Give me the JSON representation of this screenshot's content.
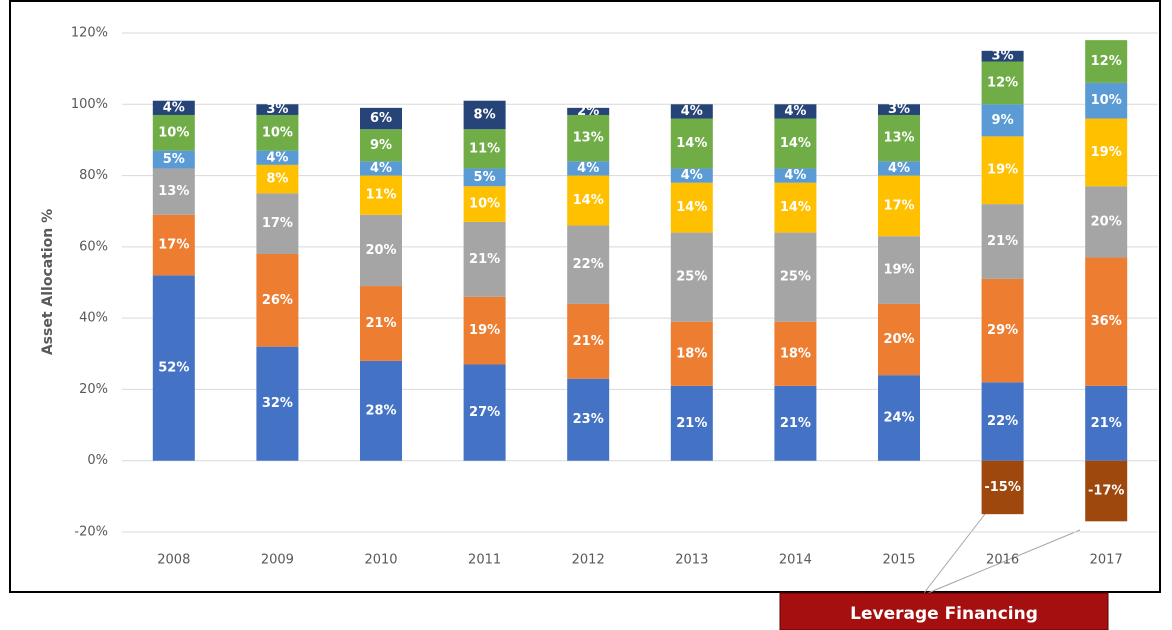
{
  "chart_data": {
    "type": "stacked_bar",
    "y_label": "Asset Allocation %",
    "annotation": "Leverage Financing",
    "categories": [
      "2008",
      "2009",
      "2010",
      "2011",
      "2012",
      "2013",
      "2014",
      "2015",
      "2016",
      "2017"
    ],
    "ylim": [
      -20,
      120
    ],
    "yticks": [
      {
        "value": -20,
        "label": "-20%"
      },
      {
        "value": 0,
        "label": "0%"
      },
      {
        "value": 20,
        "label": "20%"
      },
      {
        "value": 40,
        "label": "40%"
      },
      {
        "value": 60,
        "label": "60%"
      },
      {
        "value": 80,
        "label": "80%"
      },
      {
        "value": 100,
        "label": "100%"
      },
      {
        "value": 120,
        "label": "120%"
      }
    ],
    "grid": true,
    "series": [
      {
        "color": "#4472c4",
        "values": [
          52,
          32,
          28,
          27,
          23,
          21,
          21,
          24,
          22,
          21
        ],
        "value_labels": [
          "52%",
          "32%",
          "28%",
          "27%",
          "23%",
          "21%",
          "21%",
          "24%",
          "22%",
          "21%"
        ]
      },
      {
        "color": "#ed7d31",
        "values": [
          17,
          26,
          21,
          19,
          21,
          18,
          18,
          20,
          29,
          36
        ],
        "value_labels": [
          "17%",
          "26%",
          "21%",
          "19%",
          "21%",
          "18%",
          "18%",
          "20%",
          "29%",
          "36%"
        ]
      },
      {
        "color": "#a5a5a5",
        "values": [
          13,
          17,
          20,
          21,
          22,
          25,
          25,
          19,
          21,
          20
        ],
        "value_labels": [
          "13%",
          "17%",
          "20%",
          "21%",
          "22%",
          "25%",
          "25%",
          "19%",
          "21%",
          "20%"
        ]
      },
      {
        "color": "#ffc000",
        "values": [
          null,
          8,
          11,
          10,
          14,
          14,
          14,
          17,
          19,
          19
        ],
        "value_labels": [
          null,
          "8%",
          "11%",
          "10%",
          "14%",
          "14%",
          "14%",
          "17%",
          "19%",
          "19%"
        ]
      },
      {
        "color": "#5b9bd5",
        "values": [
          5,
          4,
          4,
          5,
          4,
          4,
          4,
          4,
          9,
          10
        ],
        "value_labels": [
          "5%",
          "4%",
          "4%",
          "5%",
          "4%",
          "4%",
          "4%",
          "4%",
          "9%",
          "10%"
        ]
      },
      {
        "color": "#70ad47",
        "values": [
          10,
          10,
          9,
          11,
          13,
          14,
          14,
          13,
          12,
          12
        ],
        "value_labels": [
          "10%",
          "10%",
          "9%",
          "11%",
          "13%",
          "14%",
          "14%",
          "13%",
          "12%",
          "12%"
        ]
      },
      {
        "color": "#264478",
        "values": [
          4,
          3,
          6,
          8,
          2,
          4,
          4,
          3,
          3,
          null
        ],
        "value_labels": [
          "4%",
          "3%",
          "6%",
          "8%",
          "2%",
          "4%",
          "4%",
          "3%",
          "3%",
          null
        ]
      },
      {
        "color": "#9e480e",
        "values": [
          null,
          null,
          null,
          null,
          null,
          null,
          null,
          null,
          -15,
          -17
        ],
        "value_labels": [
          null,
          null,
          null,
          null,
          null,
          null,
          null,
          null,
          "-15%",
          "-17%"
        ]
      }
    ]
  }
}
